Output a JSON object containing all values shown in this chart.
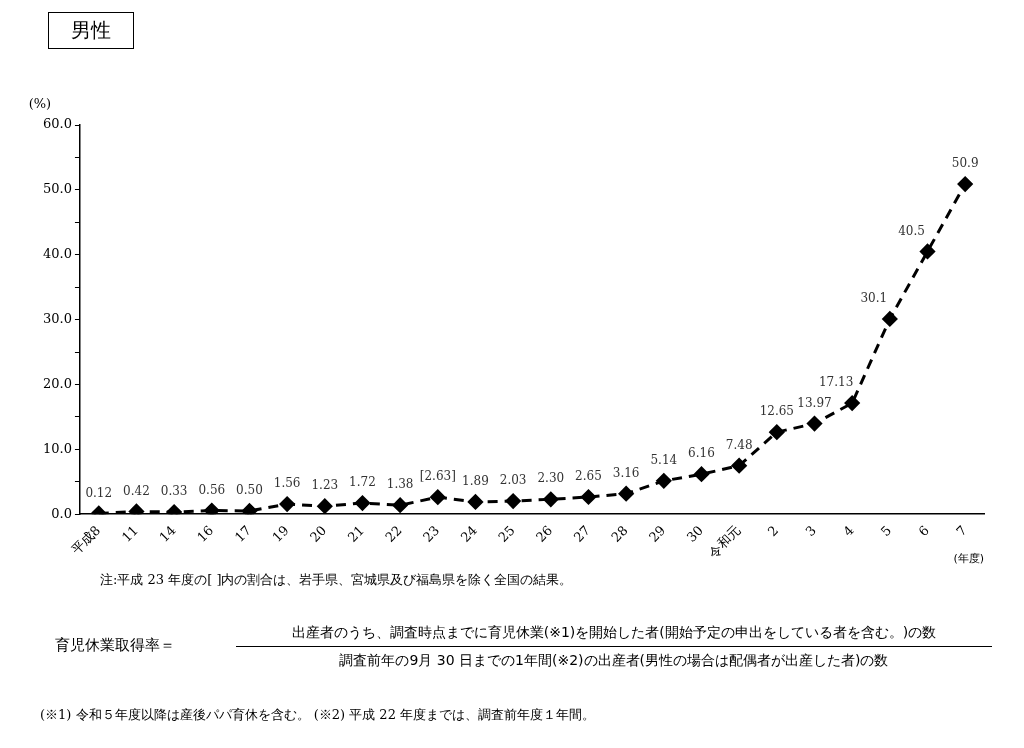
{
  "chart_data": {
    "type": "line",
    "title": "男性",
    "ylabel": "(%)",
    "xlabel": "(年度)",
    "categories": [
      "平成8",
      "11",
      "14",
      "16",
      "17",
      "19",
      "20",
      "21",
      "22",
      "23",
      "24",
      "25",
      "26",
      "27",
      "28",
      "29",
      "30",
      "令和元",
      "2",
      "3",
      "4",
      "5",
      "6",
      "7"
    ],
    "series": [
      {
        "color": "#000000",
        "values": [
          0.12,
          0.42,
          0.33,
          0.56,
          0.5,
          1.56,
          1.23,
          1.72,
          1.38,
          2.63,
          1.89,
          2.03,
          2.3,
          2.65,
          3.16,
          5.14,
          6.16,
          7.48,
          12.65,
          13.97,
          17.13,
          30.1,
          40.5,
          50.9
        ],
        "value_labels": [
          "0.12",
          "0.42",
          "0.33",
          "0.56",
          "0.50",
          "1.56",
          "1.23",
          "1.72",
          "1.38",
          "[2.63]",
          "1.89",
          "2.03",
          "2.30",
          "2.65",
          "3.16",
          "5.14",
          "6.16",
          "7.48",
          "12.65",
          "13.97",
          "17.13",
          "30.1",
          "40.5",
          "50.9"
        ]
      }
    ],
    "ylim": [
      0,
      60
    ],
    "yticks": [
      {
        "value": 0,
        "label": "0.0"
      },
      {
        "value": 5,
        "label": null
      },
      {
        "value": 10,
        "label": "10.0"
      },
      {
        "value": 15,
        "label": null
      },
      {
        "value": 20,
        "label": "20.0"
      },
      {
        "value": 25,
        "label": null
      },
      {
        "value": 30,
        "label": "30.0"
      },
      {
        "value": 35,
        "label": null
      },
      {
        "value": 40,
        "label": "40.0"
      },
      {
        "value": 45,
        "label": null
      },
      {
        "value": 50,
        "label": "50.0"
      },
      {
        "value": 55,
        "label": null
      },
      {
        "value": 60,
        "label": "60.0"
      }
    ],
    "grid": false,
    "legend": false,
    "marker": "diamond",
    "line_style": "dashed",
    "annotations": [
      "注:平成 23 年度の[ ]内の割合は、岩手県、宮城県及び福島県を除く全国の結果。",
      "育児休業取得率＝",
      "出産者のうち、調査時点までに育児休業(※1)を開始した者(開始予定の申出をしている者を含む。)の数",
      "調査前年の9月 30 日までの1年間(※2)の出産者(男性の場合は配偶者が出産した者)の数",
      "(※1) 令和５年度以降は産後パパ育休を含む。 (※2) 平成 22 年度までは、調査前年度１年間。"
    ]
  }
}
